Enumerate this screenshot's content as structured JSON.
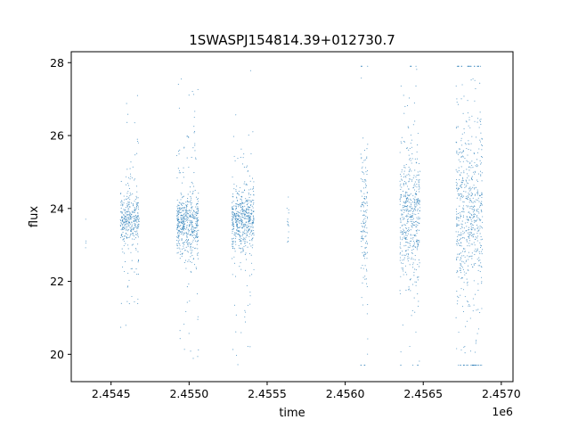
{
  "chart_data": {
    "type": "scatter",
    "title": "1SWASPJ154814.39+012730.7",
    "xlabel": "time",
    "ylabel": "flux",
    "x_offset_label": "1e6",
    "xlim": [
      2454245,
      2457075
    ],
    "ylim": [
      19.25,
      28.3
    ],
    "x_ticks": [
      2454500,
      2455000,
      2455500,
      2456000,
      2456500,
      2457000
    ],
    "x_tick_labels": [
      "2.4545",
      "2.4550",
      "2.4555",
      "2.4560",
      "2.4565",
      "2.4570"
    ],
    "y_ticks": [
      20,
      22,
      24,
      26,
      28
    ],
    "y_tick_labels": [
      "20",
      "22",
      "24",
      "26",
      "28"
    ],
    "grid": false,
    "legend": "none",
    "marker_color": "#1f77b4",
    "series": [
      {
        "observing_seasons": [
          {
            "x_start": 2454335,
            "x_end": 2454340,
            "y_center": 23.3,
            "y_core": 0.25,
            "y_min": 22.6,
            "y_max": 23.9,
            "density": 0.08
          },
          {
            "x_start": 2454560,
            "x_end": 2454680,
            "y_center": 23.7,
            "y_core": 0.35,
            "y_min": 19.9,
            "y_max": 27.6,
            "density": 0.8
          },
          {
            "x_start": 2454920,
            "x_end": 2455060,
            "y_center": 23.6,
            "y_core": 0.4,
            "y_min": 19.7,
            "y_max": 27.9,
            "density": 1.0
          },
          {
            "x_start": 2455275,
            "x_end": 2455415,
            "y_center": 23.7,
            "y_core": 0.4,
            "y_min": 19.7,
            "y_max": 27.9,
            "density": 1.0
          },
          {
            "x_start": 2455625,
            "x_end": 2455640,
            "y_center": 23.6,
            "y_core": 0.3,
            "y_min": 22.0,
            "y_max": 25.0,
            "density": 0.25
          },
          {
            "x_start": 2456100,
            "x_end": 2456145,
            "y_center": 23.8,
            "y_core": 0.9,
            "y_min": 19.7,
            "y_max": 27.9,
            "density": 0.9
          },
          {
            "x_start": 2456350,
            "x_end": 2456480,
            "y_center": 23.8,
            "y_core": 0.9,
            "y_min": 19.7,
            "y_max": 27.9,
            "density": 1.0
          },
          {
            "x_start": 2456710,
            "x_end": 2456880,
            "y_center": 23.9,
            "y_core": 1.1,
            "y_min": 19.7,
            "y_max": 27.9,
            "density": 1.0
          }
        ]
      }
    ]
  }
}
